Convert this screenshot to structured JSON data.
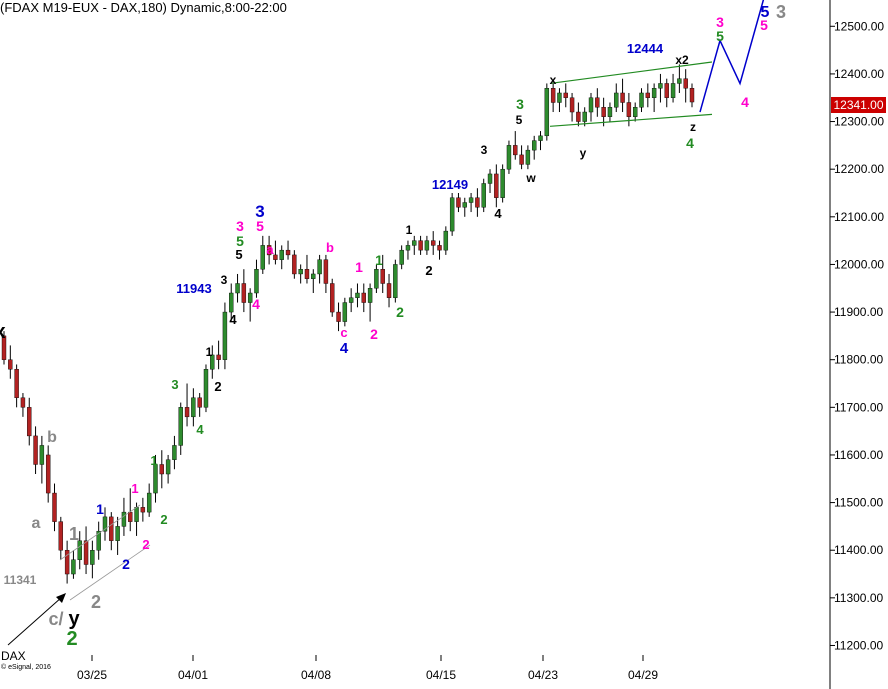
{
  "title": "(FDAX M19-EUX - DAX,180) Dynamic,8:00-22:00",
  "source_label": "DAX",
  "copyright": "© eSignal, 2016",
  "last_price": "12341.00",
  "colors": {
    "up": "#2e8b2e",
    "down": "#b22222",
    "wick": "#000000",
    "blue": "#0000cc",
    "magenta": "#ff00cc",
    "green": "#228b22",
    "black": "#000000",
    "gray": "#888888",
    "price_tag": "#cc0000"
  },
  "chart_data": {
    "type": "candlestick",
    "y_axis": {
      "range": [
        11180,
        12530
      ],
      "ticks": [
        "11200.00",
        "11300.00",
        "11400.00",
        "11500.00",
        "11600.00",
        "11700.00",
        "11800.00",
        "11900.00",
        "12000.00",
        "12100.00",
        "12200.00",
        "12300.00",
        "12400.00",
        "12500.00"
      ]
    },
    "x_axis": {
      "ticks": [
        "03/25",
        "04/01",
        "04/08",
        "04/15",
        "04/23",
        "04/29"
      ]
    },
    "candles": [
      [
        11850,
        11860,
        11790,
        11800
      ],
      [
        11800,
        11830,
        11760,
        11780
      ],
      [
        11780,
        11790,
        11700,
        11720
      ],
      [
        11720,
        11730,
        11680,
        11700
      ],
      [
        11700,
        11720,
        11620,
        11640
      ],
      [
        11640,
        11660,
        11560,
        11580
      ],
      [
        11580,
        11640,
        11540,
        11620
      ],
      [
        11600,
        11620,
        11500,
        11520
      ],
      [
        11520,
        11540,
        11440,
        11460
      ],
      [
        11460,
        11470,
        11380,
        11400
      ],
      [
        11400,
        11420,
        11330,
        11350
      ],
      [
        11350,
        11400,
        11340,
        11380
      ],
      [
        11380,
        11440,
        11360,
        11420
      ],
      [
        11420,
        11450,
        11350,
        11370
      ],
      [
        11370,
        11420,
        11341,
        11400
      ],
      [
        11400,
        11460,
        11380,
        11440
      ],
      [
        11440,
        11490,
        11420,
        11470
      ],
      [
        11470,
        11480,
        11400,
        11420
      ],
      [
        11420,
        11470,
        11390,
        11450
      ],
      [
        11450,
        11510,
        11430,
        11480
      ],
      [
        11480,
        11530,
        11440,
        11460
      ],
      [
        11460,
        11500,
        11430,
        11490
      ],
      [
        11490,
        11510,
        11460,
        11480
      ],
      [
        11480,
        11540,
        11470,
        11520
      ],
      [
        11520,
        11600,
        11500,
        11580
      ],
      [
        11580,
        11610,
        11530,
        11560
      ],
      [
        11560,
        11600,
        11540,
        11590
      ],
      [
        11590,
        11640,
        11570,
        11620
      ],
      [
        11620,
        11710,
        11600,
        11700
      ],
      [
        11700,
        11750,
        11660,
        11680
      ],
      [
        11680,
        11740,
        11660,
        11720
      ],
      [
        11720,
        11730,
        11680,
        11700
      ],
      [
        11700,
        11790,
        11690,
        11780
      ],
      [
        11780,
        11830,
        11760,
        11810
      ],
      [
        11810,
        11840,
        11780,
        11800
      ],
      [
        11800,
        11920,
        11780,
        11900
      ],
      [
        11900,
        11960,
        11880,
        11940
      ],
      [
        11940,
        11980,
        11920,
        11960
      ],
      [
        11960,
        11990,
        11900,
        11920
      ],
      [
        11920,
        11950,
        11880,
        11940
      ],
      [
        11940,
        12010,
        11930,
        11990
      ],
      [
        11990,
        12060,
        11980,
        12040
      ],
      [
        12040,
        12060,
        12000,
        12020
      ],
      [
        12020,
        12050,
        12000,
        12010
      ],
      [
        12010,
        12040,
        11990,
        12030
      ],
      [
        12030,
        12050,
        12010,
        12020
      ],
      [
        12020,
        12030,
        11970,
        11980
      ],
      [
        11980,
        12000,
        11960,
        11990
      ],
      [
        11990,
        12020,
        11960,
        11970
      ],
      [
        11970,
        11990,
        11940,
        11980
      ],
      [
        11980,
        12020,
        11960,
        12010
      ],
      [
        12010,
        12020,
        11940,
        11960
      ],
      [
        11960,
        11970,
        11890,
        11900
      ],
      [
        11900,
        11920,
        11860,
        11880
      ],
      [
        11880,
        11930,
        11870,
        11920
      ],
      [
        11920,
        11950,
        11900,
        11930
      ],
      [
        11930,
        11960,
        11910,
        11940
      ],
      [
        11940,
        11960,
        11900,
        11920
      ],
      [
        11920,
        11960,
        11880,
        11950
      ],
      [
        11950,
        12000,
        11940,
        11990
      ],
      [
        11990,
        12020,
        11940,
        11960
      ],
      [
        11960,
        11980,
        11910,
        11930
      ],
      [
        11930,
        12010,
        11920,
        12000
      ],
      [
        12000,
        12040,
        11990,
        12030
      ],
      [
        12030,
        12050,
        12010,
        12040
      ],
      [
        12040,
        12060,
        12020,
        12050
      ],
      [
        12050,
        12060,
        12020,
        12030
      ],
      [
        12030,
        12060,
        12020,
        12050
      ],
      [
        12050,
        12070,
        12020,
        12040
      ],
      [
        12040,
        12050,
        12010,
        12030
      ],
      [
        12030,
        12080,
        12020,
        12070
      ],
      [
        12070,
        12150,
        12060,
        12140
      ],
      [
        12140,
        12150,
        12110,
        12120
      ],
      [
        12120,
        12140,
        12100,
        12130
      ],
      [
        12130,
        12150,
        12110,
        12140
      ],
      [
        12140,
        12160,
        12100,
        12120
      ],
      [
        12120,
        12180,
        12110,
        12170
      ],
      [
        12170,
        12200,
        12150,
        12190
      ],
      [
        12190,
        12210,
        12120,
        12140
      ],
      [
        12140,
        12210,
        12130,
        12200
      ],
      [
        12200,
        12260,
        12190,
        12250
      ],
      [
        12250,
        12280,
        12220,
        12230
      ],
      [
        12230,
        12250,
        12200,
        12210
      ],
      [
        12210,
        12250,
        12200,
        12240
      ],
      [
        12240,
        12270,
        12220,
        12260
      ],
      [
        12260,
        12280,
        12240,
        12270
      ],
      [
        12270,
        12380,
        12260,
        12370
      ],
      [
        12370,
        12380,
        12320,
        12340
      ],
      [
        12340,
        12370,
        12320,
        12360
      ],
      [
        12360,
        12380,
        12330,
        12350
      ],
      [
        12350,
        12360,
        12300,
        12320
      ],
      [
        12320,
        12340,
        12290,
        12300
      ],
      [
        12300,
        12330,
        12290,
        12320
      ],
      [
        12320,
        12360,
        12300,
        12350
      ],
      [
        12350,
        12370,
        12310,
        12330
      ],
      [
        12330,
        12350,
        12290,
        12310
      ],
      [
        12310,
        12340,
        12300,
        12330
      ],
      [
        12330,
        12380,
        12320,
        12360
      ],
      [
        12360,
        12390,
        12320,
        12340
      ],
      [
        12340,
        12360,
        12290,
        12310
      ],
      [
        12310,
        12340,
        12300,
        12330
      ],
      [
        12330,
        12370,
        12320,
        12360
      ],
      [
        12360,
        12380,
        12330,
        12350
      ],
      [
        12350,
        12380,
        12320,
        12370
      ],
      [
        12370,
        12400,
        12340,
        12380
      ],
      [
        12380,
        12390,
        12330,
        12350
      ],
      [
        12350,
        12400,
        12340,
        12380
      ],
      [
        12380,
        12420,
        12360,
        12390
      ],
      [
        12390,
        12410,
        12340,
        12370
      ],
      [
        12370,
        12380,
        12330,
        12341
      ]
    ],
    "channels": [
      {
        "color": "#228b22",
        "points": [
          [
            12290,
            0
          ],
          [
            12315,
            1
          ]
        ]
      },
      {
        "color": "#228b22",
        "points": [
          [
            12380,
            0
          ],
          [
            12425,
            1
          ]
        ]
      }
    ],
    "projection": {
      "color": "#0000cc",
      "points": [
        [
          12320,
          0
        ],
        [
          12470,
          0.3
        ],
        [
          12380,
          0.55
        ],
        [
          12560,
          1
        ]
      ]
    },
    "annotations": [
      {
        "text": "x",
        "color": "black",
        "size": 20
      },
      {
        "text": "b",
        "color": "gray",
        "size": 16
      },
      {
        "text": "a",
        "color": "gray",
        "size": 16
      },
      {
        "text": "1",
        "color": "gray",
        "size": 18
      },
      {
        "text": "11341",
        "color": "gray",
        "size": 12
      },
      {
        "text": "c/",
        "color": "gray",
        "size": 18
      },
      {
        "text": "y",
        "color": "black",
        "size": 20
      },
      {
        "text": "2",
        "color": "gray",
        "size": 18
      },
      {
        "text": "2",
        "color": "green",
        "size": 20
      },
      {
        "text": "1",
        "color": "blue",
        "size": 14
      },
      {
        "text": "2",
        "color": "blue",
        "size": 14
      },
      {
        "text": "1",
        "color": "magenta",
        "size": 13
      },
      {
        "text": "2",
        "color": "magenta",
        "size": 13
      },
      {
        "text": "1",
        "color": "green",
        "size": 13
      },
      {
        "text": "2",
        "color": "green",
        "size": 13
      },
      {
        "text": "3",
        "color": "green",
        "size": 13
      },
      {
        "text": "4",
        "color": "green",
        "size": 13
      },
      {
        "text": "1",
        "color": "black",
        "size": 12
      },
      {
        "text": "2",
        "color": "black",
        "size": 13
      },
      {
        "text": "11943",
        "color": "blue",
        "size": 13
      },
      {
        "text": "3",
        "color": "black",
        "size": 12
      },
      {
        "text": "4",
        "color": "black",
        "size": 13
      },
      {
        "text": "3",
        "color": "magenta",
        "size": 14
      },
      {
        "text": "5",
        "color": "magenta",
        "size": 14
      },
      {
        "text": "3",
        "color": "blue",
        "size": 17
      },
      {
        "text": "5",
        "color": "green",
        "size": 14
      },
      {
        "text": "5",
        "color": "black",
        "size": 13
      },
      {
        "text": "4",
        "color": "magenta",
        "size": 14
      },
      {
        "text": "a",
        "color": "magenta",
        "size": 13
      },
      {
        "text": "b",
        "color": "magenta",
        "size": 13
      },
      {
        "text": "c",
        "color": "magenta",
        "size": 13
      },
      {
        "text": "4",
        "color": "blue",
        "size": 15
      },
      {
        "text": "1",
        "color": "magenta",
        "size": 14
      },
      {
        "text": "2",
        "color": "magenta",
        "size": 14
      },
      {
        "text": "1",
        "color": "green",
        "size": 14
      },
      {
        "text": "2",
        "color": "green",
        "size": 14
      },
      {
        "text": "1",
        "color": "black",
        "size": 12
      },
      {
        "text": "2",
        "color": "black",
        "size": 13
      },
      {
        "text": "12149",
        "color": "blue",
        "size": 13
      },
      {
        "text": "3",
        "color": "black",
        "size": 12
      },
      {
        "text": "4",
        "color": "black",
        "size": 13
      },
      {
        "text": "3",
        "color": "green",
        "size": 14
      },
      {
        "text": "5",
        "color": "black",
        "size": 12
      },
      {
        "text": "w",
        "color": "black",
        "size": 12
      },
      {
        "text": "x",
        "color": "black",
        "size": 12
      },
      {
        "text": "y",
        "color": "black",
        "size": 12
      },
      {
        "text": "12444",
        "color": "blue",
        "size": 13
      },
      {
        "text": "x2",
        "color": "black",
        "size": 12
      },
      {
        "text": "z",
        "color": "black",
        "size": 12
      },
      {
        "text": "4",
        "color": "green",
        "size": 14
      },
      {
        "text": "3",
        "color": "magenta",
        "size": 14
      },
      {
        "text": "5",
        "color": "green",
        "size": 14
      },
      {
        "text": "5",
        "color": "blue",
        "size": 16
      },
      {
        "text": "5",
        "color": "magenta",
        "size": 14
      },
      {
        "text": "3",
        "color": "gray",
        "size": 18
      },
      {
        "text": "4",
        "color": "magenta",
        "size": 14
      }
    ]
  }
}
